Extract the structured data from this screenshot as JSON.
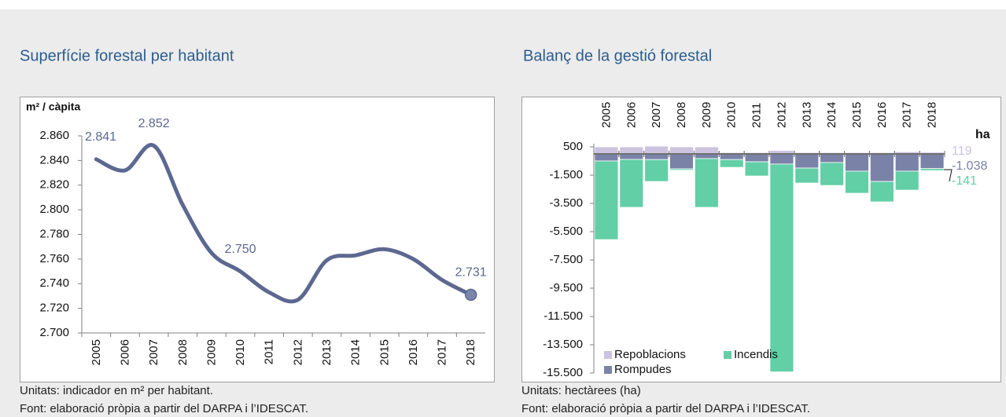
{
  "chart_data": [
    {
      "type": "line",
      "title": "Superfície forestal per habitant",
      "y_label": "m² / càpita",
      "categories": [
        "2005",
        "2006",
        "2007",
        "2008",
        "2009",
        "2010",
        "2011",
        "2012",
        "2013",
        "2014",
        "2015",
        "2016",
        "2017",
        "2018"
      ],
      "values": [
        2841,
        2832,
        2852,
        2804,
        2765,
        2750,
        2733,
        2727,
        2759,
        2763,
        2768,
        2760,
        2743,
        2731
      ],
      "value_labels": [
        "2.841",
        null,
        "2.852",
        null,
        null,
        "2.750",
        null,
        null,
        null,
        null,
        null,
        null,
        null,
        "2.731"
      ],
      "color": "#5c6890",
      "ylim": [
        2700,
        2860
      ],
      "yticks": [
        {
          "value": 2700,
          "label": "2.700"
        },
        {
          "value": 2720,
          "label": "2.720"
        },
        {
          "value": 2740,
          "label": "2.740"
        },
        {
          "value": 2760,
          "label": "2.760"
        },
        {
          "value": 2780,
          "label": "2.780"
        },
        {
          "value": 2800,
          "label": "2.800"
        },
        {
          "value": 2820,
          "label": "2.820"
        },
        {
          "value": 2840,
          "label": "2.840"
        },
        {
          "value": 2860,
          "label": "2.860"
        }
      ],
      "footnotes": [
        "Unitats: indicador en m² per habitant.",
        "Font: elaboració pròpia a partir del DARPA i l’IDESCAT."
      ]
    },
    {
      "type": "bar",
      "stacked": true,
      "title": "Balanç de la gestió forestal",
      "unit": "ha",
      "categories": [
        "2005",
        "2006",
        "2007",
        "2008",
        "2009",
        "2010",
        "2011",
        "2012",
        "2013",
        "2014",
        "2015",
        "2016",
        "2017",
        "2018"
      ],
      "series": [
        {
          "name": "Repoblacions",
          "color": "#cbc3e0",
          "values": [
            500,
            500,
            550,
            500,
            500,
            100,
            100,
            250,
            100,
            100,
            100,
            100,
            150,
            119
          ],
          "value_labels": [
            null,
            null,
            null,
            null,
            null,
            null,
            null,
            null,
            null,
            null,
            null,
            null,
            null,
            "119"
          ]
        },
        {
          "name": "Incendis",
          "color": "#62cfa6",
          "values": [
            -5560,
            -3390,
            -1550,
            -100,
            -3450,
            -550,
            -1000,
            -14700,
            -1060,
            -1620,
            -1560,
            -1440,
            -1340,
            -141
          ],
          "value_labels": [
            null,
            null,
            null,
            null,
            null,
            null,
            null,
            null,
            null,
            null,
            null,
            null,
            null,
            "-141"
          ]
        },
        {
          "name": "Rompudes",
          "color": "#7a82a8",
          "values": [
            -500,
            -390,
            -400,
            -1050,
            -330,
            -400,
            -560,
            -720,
            -1000,
            -610,
            -1220,
            -1950,
            -1220,
            -1038
          ],
          "value_labels": [
            null,
            null,
            null,
            null,
            null,
            null,
            null,
            null,
            null,
            null,
            null,
            null,
            null,
            "-1.038"
          ]
        }
      ],
      "ylim": [
        -15500,
        500
      ],
      "yticks": [
        500,
        {
          "value": -1500,
          "label": "-1.500"
        },
        {
          "value": -3500,
          "label": "-3.500"
        },
        {
          "value": -5500,
          "label": "-5.500"
        },
        {
          "value": -7500,
          "label": "-7.500"
        },
        {
          "value": -9500,
          "label": "-9.500"
        },
        {
          "value": -11500,
          "label": "-11.500"
        },
        {
          "value": -13500,
          "label": "-13.500"
        },
        {
          "value": -15500,
          "label": "-15.500"
        }
      ],
      "legend": "bottom-left",
      "footnotes": [
        "Unitats: hectàrees (ha)",
        "Font: elaboració pròpia a partir del DARPA i l’IDESCAT."
      ]
    }
  ]
}
